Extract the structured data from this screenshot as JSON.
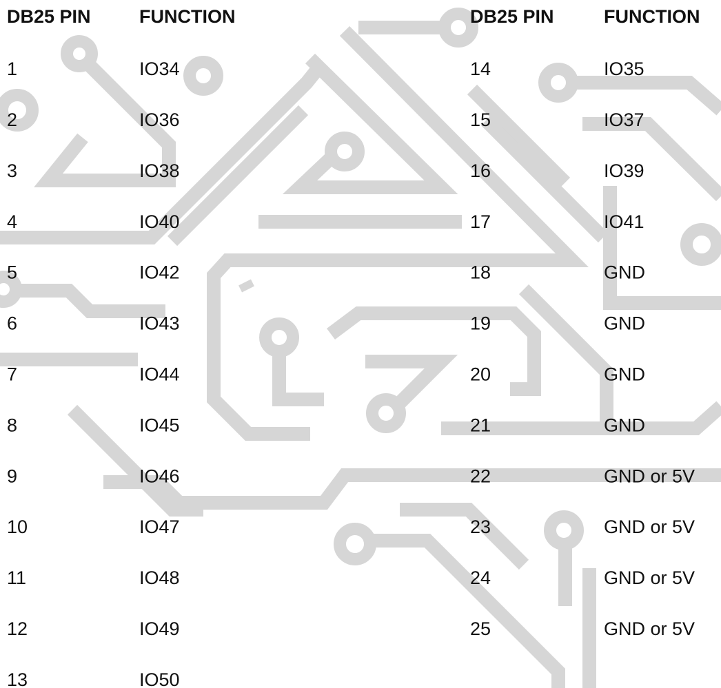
{
  "tables": [
    {
      "header": [
        "DB25 PIN",
        "FUNCTION"
      ],
      "rows": [
        [
          "1",
          "IO34"
        ],
        [
          "2",
          "IO36"
        ],
        [
          "3",
          "IO38"
        ],
        [
          "4",
          "IO40"
        ],
        [
          "5",
          "IO42"
        ],
        [
          "6",
          "IO43"
        ],
        [
          "7",
          "IO44"
        ],
        [
          "8",
          "IO45"
        ],
        [
          "9",
          "IO46"
        ],
        [
          "10",
          "IO47"
        ],
        [
          "11",
          "IO48"
        ],
        [
          "12",
          "IO49"
        ],
        [
          "13",
          "IO50"
        ]
      ]
    },
    {
      "header": [
        "DB25 PIN",
        "FUNCTION"
      ],
      "rows": [
        [
          "14",
          "IO35"
        ],
        [
          "15",
          "IO37"
        ],
        [
          "16",
          "IO39"
        ],
        [
          "17",
          "IO41"
        ],
        [
          "18",
          "GND"
        ],
        [
          "19",
          "GND"
        ],
        [
          "20",
          "GND"
        ],
        [
          "21",
          "GND"
        ],
        [
          "22",
          "GND or 5V"
        ],
        [
          "23",
          "GND or 5V"
        ],
        [
          "24",
          "GND or 5V"
        ],
        [
          "25",
          "GND or 5V"
        ]
      ]
    }
  ]
}
